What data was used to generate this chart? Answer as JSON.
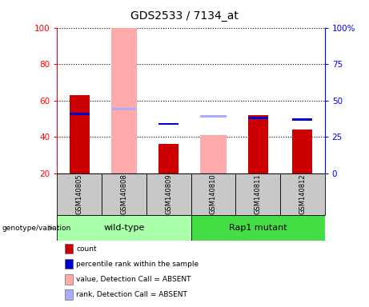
{
  "title": "GDS2533 / 7134_at",
  "samples": [
    "GSM140805",
    "GSM140808",
    "GSM140809",
    "GSM140810",
    "GSM140811",
    "GSM140812"
  ],
  "groups": [
    {
      "label": "wild-type",
      "color": "#aaffaa",
      "samples": [
        0,
        1,
        2
      ]
    },
    {
      "label": "Rap1 mutant",
      "color": "#44dd44",
      "samples": [
        3,
        4,
        5
      ]
    }
  ],
  "ylim_left": [
    20,
    100
  ],
  "yticks_left": [
    20,
    40,
    60,
    80,
    100
  ],
  "yticks_right": [
    0,
    25,
    50,
    75,
    100
  ],
  "ytick_labels_right": [
    "0",
    "25",
    "50",
    "75",
    "100%"
  ],
  "grid_lines": [
    40,
    60,
    80,
    100
  ],
  "count_values": [
    63,
    null,
    36,
    null,
    52,
    44
  ],
  "rank_values": [
    41,
    null,
    34,
    null,
    38,
    37
  ],
  "absent_value_values": [
    null,
    100,
    null,
    41,
    null,
    null
  ],
  "absent_rank_values": [
    null,
    44,
    null,
    39,
    null,
    null
  ],
  "count_color": "#cc0000",
  "rank_color": "#0000cc",
  "absent_value_color": "#ffaaaa",
  "absent_rank_color": "#aaaaff",
  "sample_bg": "#c8c8c8",
  "legend_items": [
    {
      "label": "count",
      "color": "#cc0000"
    },
    {
      "label": "percentile rank within the sample",
      "color": "#0000cc"
    },
    {
      "label": "value, Detection Call = ABSENT",
      "color": "#ffaaaa"
    },
    {
      "label": "rank, Detection Call = ABSENT",
      "color": "#aaaaff"
    }
  ],
  "genotype_label": "genotype/variation"
}
